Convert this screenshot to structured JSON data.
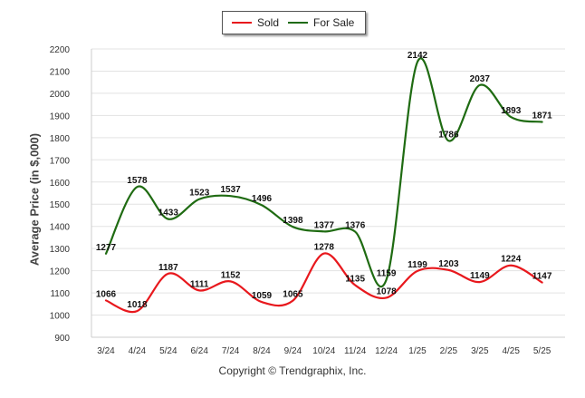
{
  "legend": {
    "sold_label": "Sold",
    "forsale_label": "For Sale"
  },
  "copyright": "Copyright © Trendgraphix, Inc.",
  "chart_data": {
    "type": "line",
    "title": "",
    "xlabel": "",
    "ylabel": "Average Price (in $,000)",
    "categories": [
      "3/24",
      "4/24",
      "5/24",
      "6/24",
      "7/24",
      "8/24",
      "9/24",
      "10/24",
      "11/24",
      "12/24",
      "1/25",
      "2/25",
      "3/25",
      "4/25",
      "5/25"
    ],
    "ylim": [
      900,
      2200
    ],
    "yticks": [
      900,
      1000,
      1100,
      1200,
      1300,
      1400,
      1500,
      1600,
      1700,
      1800,
      1900,
      2000,
      2100,
      2200
    ],
    "grid": true,
    "legend_position": "top-center",
    "series": [
      {
        "name": "Sold",
        "color": "#e8181d",
        "values": [
          1066,
          1018,
          1187,
          1111,
          1152,
          1059,
          1065,
          1278,
          1135,
          1078,
          1199,
          1203,
          1149,
          1224,
          1147
        ]
      },
      {
        "name": "For Sale",
        "color": "#1f6b12",
        "values": [
          1277,
          1578,
          1433,
          1523,
          1537,
          1496,
          1398,
          1377,
          1376,
          1159,
          2142,
          1786,
          2037,
          1893,
          1871
        ]
      }
    ]
  }
}
